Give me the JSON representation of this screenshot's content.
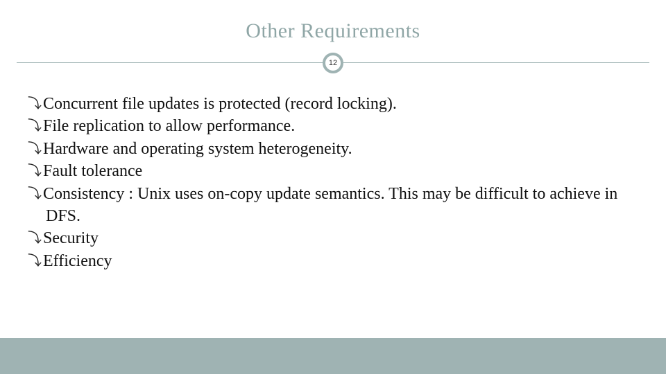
{
  "colors": {
    "title": "#8fa6a6",
    "divider": "#9fb3b3",
    "badge_border": "#9fb3b3",
    "badge_bg": "#ffffff",
    "body_text": "#111111",
    "footer_bg": "#9fb3b3",
    "page_bg": "#ffffff"
  },
  "title": "Other Requirements",
  "slide_number": "12",
  "bullets": [
    "Concurrent file updates is protected (record locking).",
    "File replication to allow performance.",
    "Hardware and operating system heterogeneity.",
    "Fault tolerance",
    "Consistency : Unix uses on-copy update semantics. This may be difficult to achieve in DFS.",
    "Security",
    "Efficiency"
  ],
  "bullet_glyph": "⤵",
  "typography": {
    "title_fontsize": 30,
    "body_fontsize": 24,
    "badge_fontsize": 11
  }
}
